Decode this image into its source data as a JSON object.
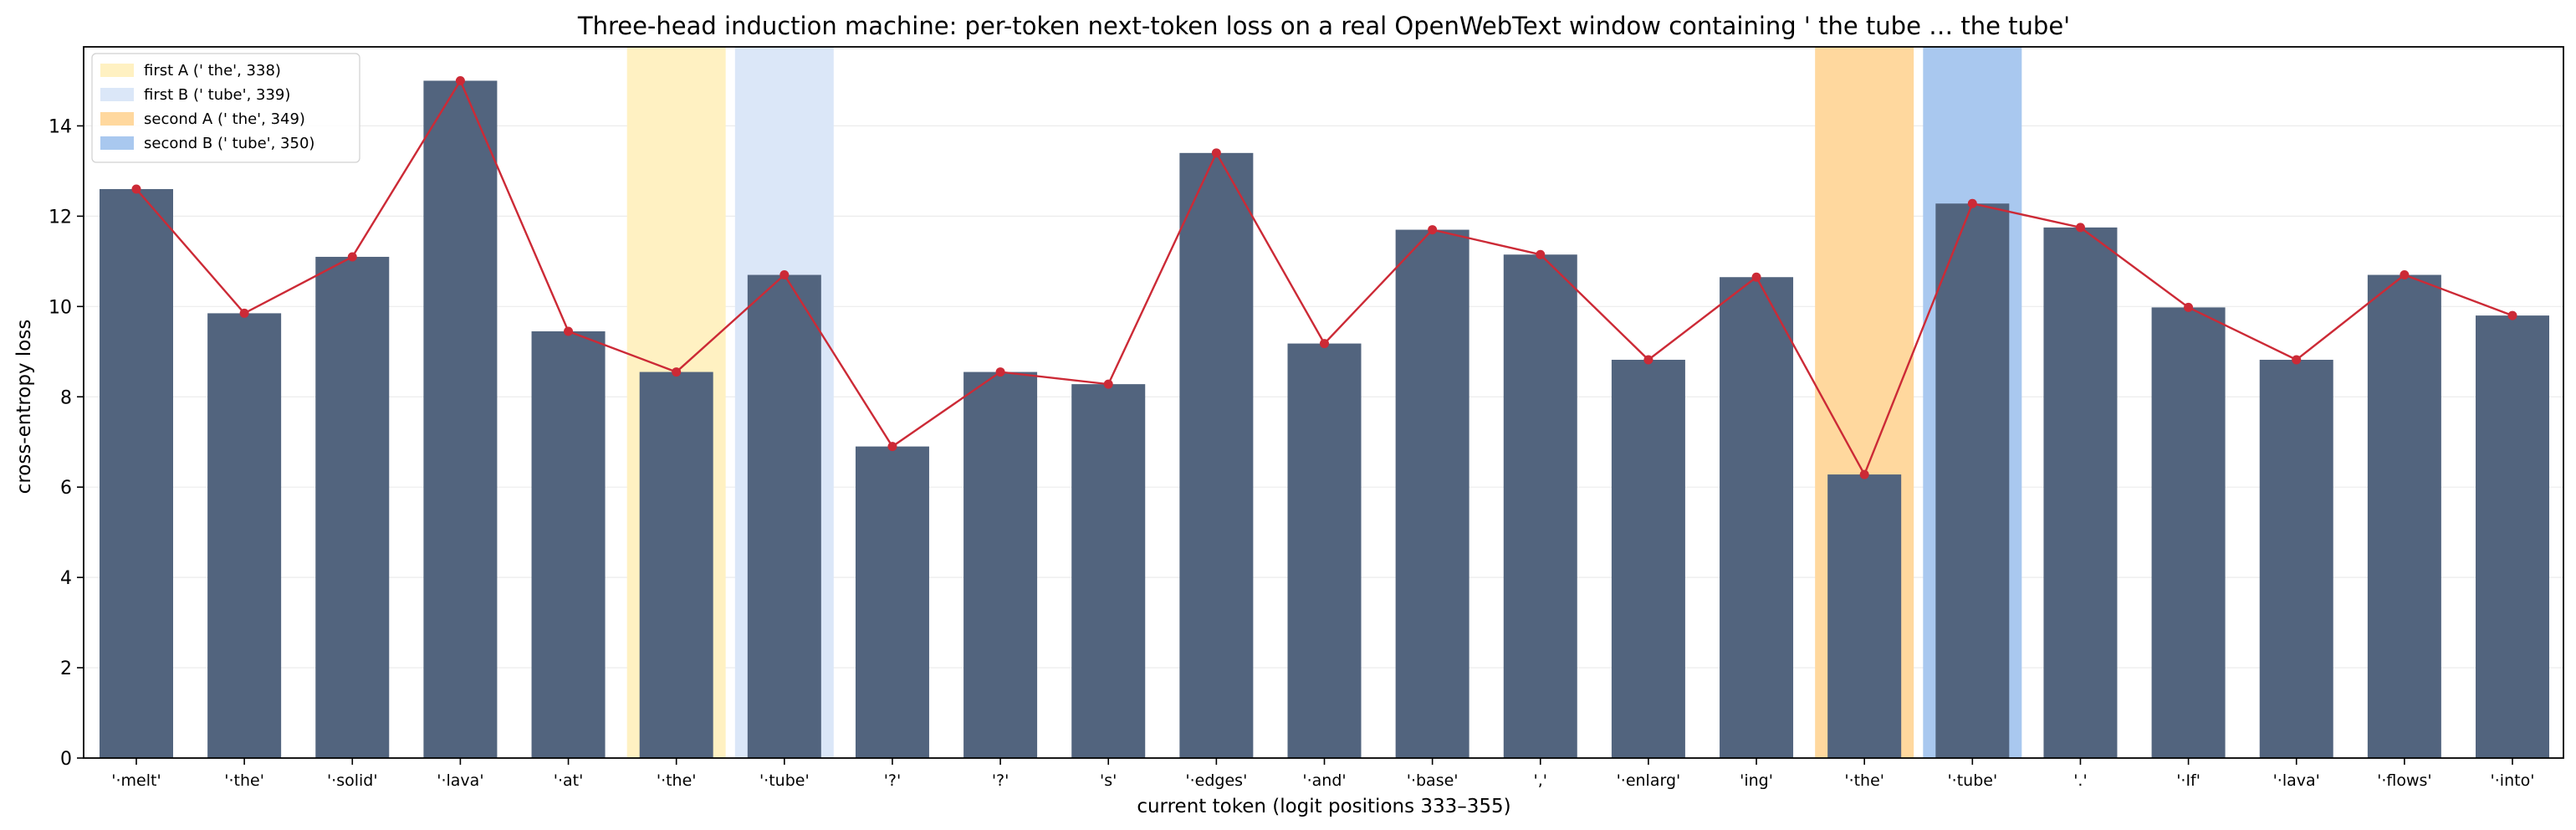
{
  "chart_data": {
    "type": "bar",
    "title": "Three-head induction machine: per-token next-token loss on a real OpenWebText window containing ' the tube … the tube'",
    "xlabel": "current token (logit positions 333–355)",
    "ylabel": "cross-entropy loss",
    "ylim": [
      0,
      15.75
    ],
    "yticks": [
      0,
      2,
      4,
      6,
      8,
      10,
      12,
      14
    ],
    "grid": "y",
    "legend_position": "top-left",
    "categories": [
      "'·melt'",
      "'·the'",
      "'·solid'",
      "'·lava'",
      "'·at'",
      "'·the'",
      "'·tube'",
      "'?'",
      "'?'",
      "'s'",
      "'·edges'",
      "'·and'",
      "'·base'",
      "','",
      "'·enlarg'",
      "'ing'",
      "'·the'",
      "'·tube'",
      "'.'",
      "'·If'",
      "'·lava'",
      "'·flows'",
      "'·into'"
    ],
    "values": [
      12.6,
      9.85,
      11.1,
      15.0,
      9.45,
      8.55,
      10.7,
      6.9,
      8.55,
      8.28,
      13.4,
      9.18,
      11.7,
      11.15,
      8.82,
      10.65,
      6.28,
      12.28,
      11.75,
      9.98,
      8.82,
      10.7,
      9.8
    ],
    "bar_color": "#52647e",
    "line_color": "#cc2a36",
    "highlights": [
      {
        "label": "first A (' the', 338)",
        "index": 5,
        "color": "#fff1c2"
      },
      {
        "label": "first B (' tube', 339)",
        "index": 6,
        "color": "#dbe7f8"
      },
      {
        "label": "second A (' the', 349)",
        "index": 16,
        "color": "#ffd89e"
      },
      {
        "label": "second B (' tube', 350)",
        "index": 17,
        "color": "#a9c8ef"
      }
    ]
  }
}
